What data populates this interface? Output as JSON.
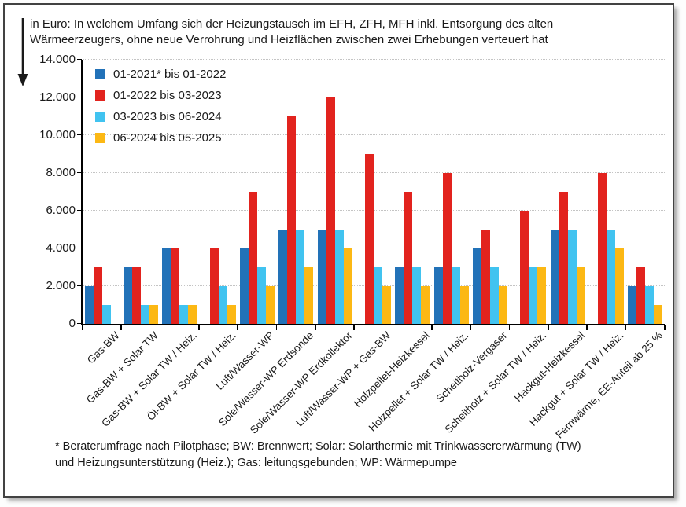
{
  "title": {
    "lines": [
      "in Euro: In welchem Umfang sich der Heizungstausch im EFH, ZFH, MFH inkl. Entsorgung des alten",
      "Wärmeerzeugers, ohne neue Verrohrung und Heizflächen zwischen zwei Erhebungen verteuert hat"
    ]
  },
  "footnote": {
    "lines": [
      "* Beraterumfrage nach Pilotphase; BW: Brennwert; Solar: Solarthermie mit Trinkwassererwärmung (TW)",
      "und Heizungsunterstützung (Heiz.); Gas: leitungsgebunden; WP: Wärmepumpe"
    ]
  },
  "colors": {
    "axis": "#000000",
    "grid": "#c4c4c4",
    "text": "#1a1a1a",
    "frame_border": "#424242"
  },
  "chart_data": {
    "type": "bar",
    "title": "in Euro: In welchem Umfang sich der Heizungstausch im EFH, ZFH, MFH inkl. Entsorgung des alten Wärmeerzeugers, ohne neue Verrohrung und Heizflächen zwischen zwei Erhebungen verteuert hat",
    "categories": [
      "Gas-BW",
      "Gas-BW + Solar TW",
      "Gas-BW + Solar TW / Heiz.",
      "Öl-BW + Solar TW / Heiz.",
      "Luft/Wasser-WP",
      "Sole/Wasser-WP Erdsonde",
      "Sole/Wasser-WP Erdkollektor",
      "Luft/Wasser-WP + Gas-BW",
      "Holzpellet-Heizkessel",
      "Holzpellet + Solar TW / Heiz.",
      "Scheitholz-Vergaser",
      "Scheitholz + Solar TW / Heiz.",
      "Hackgut-Heizkessel",
      "Hackgut + Solar TW / Heiz.",
      "Fernwärme, EE-Anteil ab 25 %"
    ],
    "series": [
      {
        "name": "01-2021* bis 01-2022",
        "color": "#2272B8",
        "values": [
          2000,
          3000,
          4000,
          0,
          4000,
          5000,
          5000,
          0,
          3000,
          3000,
          4000,
          0,
          5000,
          0,
          2000
        ]
      },
      {
        "name": "01-2022 bis 03-2023",
        "color": "#E2231E",
        "values": [
          3000,
          3000,
          4000,
          4000,
          7000,
          11000,
          12000,
          9000,
          7000,
          8000,
          5000,
          6000,
          7000,
          8000,
          3000
        ]
      },
      {
        "name": "03-2023 bis 06-2024",
        "color": "#41C3F0",
        "values": [
          1000,
          1000,
          1000,
          2000,
          3000,
          5000,
          5000,
          3000,
          3000,
          3000,
          3000,
          3000,
          5000,
          5000,
          2000
        ]
      },
      {
        "name": "06-2024 bis 05-2025",
        "color": "#FCB814",
        "values": [
          0,
          1000,
          1000,
          1000,
          2000,
          3000,
          4000,
          2000,
          2000,
          2000,
          2000,
          3000,
          3000,
          4000,
          1000
        ]
      }
    ],
    "ylim": [
      0,
      14000
    ],
    "ytick_step": 2000,
    "ytick_labels": [
      "0",
      "2.000",
      "4.000",
      "6.000",
      "8.000",
      "10.000",
      "12.000",
      "14.000"
    ],
    "xlabel": "",
    "ylabel": "in Euro",
    "grid": "horizontal-dotted",
    "legend_position": "top-left-inside",
    "x_label_rotation_deg": 45
  }
}
